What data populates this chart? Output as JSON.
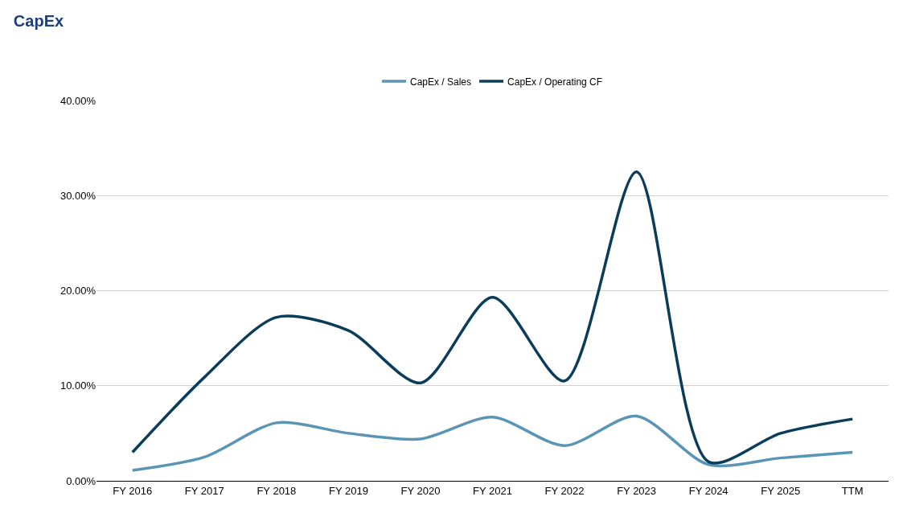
{
  "chart_data": {
    "type": "line",
    "title": "CapEx",
    "categories": [
      "FY 2016",
      "FY 2017",
      "FY 2018",
      "FY 2019",
      "FY 2020",
      "FY 2021",
      "FY 2022",
      "FY 2023",
      "FY 2024",
      "FY 2025",
      "TTM"
    ],
    "series": [
      {
        "name": "CapEx / Sales",
        "color": "#5b95b5",
        "values": [
          1.1,
          2.5,
          6.1,
          5.0,
          4.4,
          6.7,
          3.7,
          6.8,
          1.7,
          2.4,
          3.0
        ]
      },
      {
        "name": "CapEx / Operating CF",
        "color": "#0b3d5a",
        "values": [
          3.0,
          10.9,
          17.2,
          15.8,
          10.3,
          19.3,
          10.5,
          32.5,
          2.0,
          5.0,
          6.5
        ]
      }
    ],
    "ylim": [
      0,
      40
    ],
    "yticks": [
      {
        "value": 0,
        "label": "0.00%"
      },
      {
        "value": 10,
        "label": "10.00%"
      },
      {
        "value": 20,
        "label": "20.00%"
      },
      {
        "value": 30,
        "label": "30.00%"
      },
      {
        "value": 40,
        "label": "40.00%"
      }
    ],
    "grid": "y",
    "legend": "top",
    "marker": "none",
    "line_style": "solid"
  }
}
